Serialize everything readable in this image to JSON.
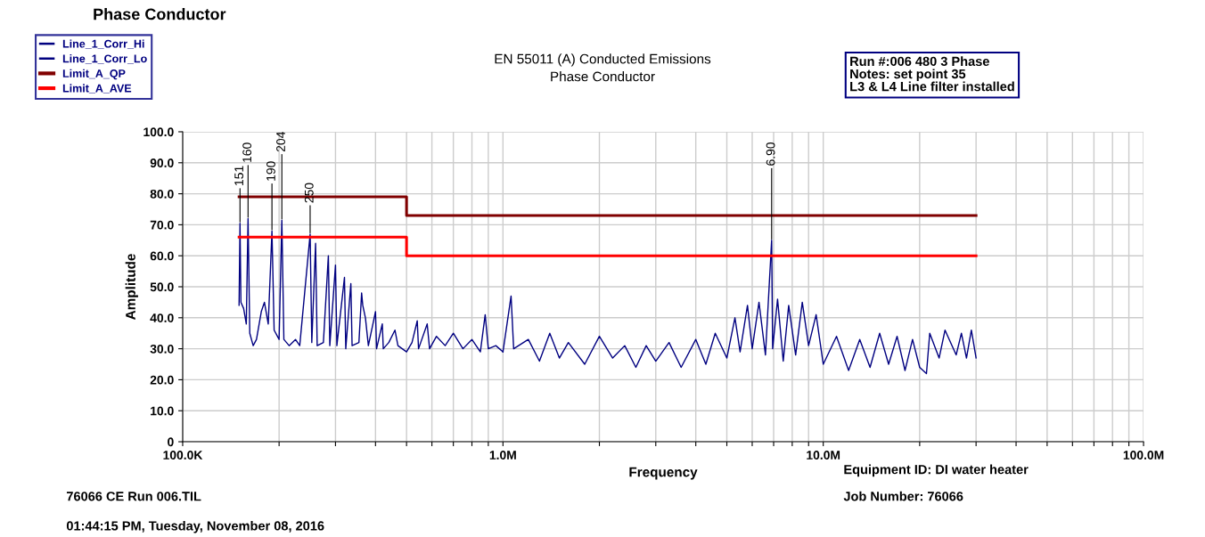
{
  "chart_data": {
    "type": "line",
    "title": "Phase Conductor",
    "subtitle": "EN 55011 (A) Conducted Emissions\nPhase Conductor",
    "xlabel": "Frequency",
    "ylabel": "Amplitude",
    "log": "x",
    "grid": true,
    "legend": "top left",
    "marker": "none",
    "line_style": "solid",
    "xlim": [
      100000,
      100000000
    ],
    "xticks": [
      {
        "value": 100000,
        "label": "100.0K"
      },
      {
        "value": 200000,
        "label": null
      },
      {
        "value": 300000,
        "label": null
      },
      {
        "value": 400000,
        "label": null
      },
      {
        "value": 500000,
        "label": null
      },
      {
        "value": 600000,
        "label": null
      },
      {
        "value": 700000,
        "label": null
      },
      {
        "value": 800000,
        "label": null
      },
      {
        "value": 900000,
        "label": null
      },
      {
        "value": 1000000,
        "label": "1.0M"
      },
      {
        "value": 2000000,
        "label": null
      },
      {
        "value": 3000000,
        "label": null
      },
      {
        "value": 4000000,
        "label": null
      },
      {
        "value": 5000000,
        "label": null
      },
      {
        "value": 6000000,
        "label": null
      },
      {
        "value": 7000000,
        "label": null
      },
      {
        "value": 8000000,
        "label": null
      },
      {
        "value": 9000000,
        "label": null
      },
      {
        "value": 10000000,
        "label": "10.0M"
      },
      {
        "value": 20000000,
        "label": null
      },
      {
        "value": 30000000,
        "label": null
      },
      {
        "value": 40000000,
        "label": null
      },
      {
        "value": 50000000,
        "label": null
      },
      {
        "value": 60000000,
        "label": null
      },
      {
        "value": 70000000,
        "label": null
      },
      {
        "value": 80000000,
        "label": null
      },
      {
        "value": 90000000,
        "label": null
      },
      {
        "value": 100000000,
        "label": "100.0M"
      }
    ],
    "ylim": [
      0,
      100
    ],
    "yticks": [
      0,
      {
        "value": 10,
        "label": "10.0"
      },
      {
        "value": 20,
        "label": "20.0"
      },
      {
        "value": 30,
        "label": "30.0"
      },
      {
        "value": 40,
        "label": "40.0"
      },
      {
        "value": 50,
        "label": "50.0"
      },
      {
        "value": 60,
        "label": "60.0"
      },
      {
        "value": 70,
        "label": "70.0"
      },
      {
        "value": 80,
        "label": "80.0"
      },
      {
        "value": 90,
        "label": "90.0"
      },
      {
        "value": 100,
        "label": "100.0"
      }
    ],
    "series": [
      {
        "name": "Line_1_Corr_Hi",
        "color": "#000080",
        "x": [
          1000000,
          1060000,
          1080000,
          1200000,
          1300000,
          1400000,
          1500000,
          1600000,
          1800000,
          2000000,
          2200000,
          2400000,
          2600000,
          2800000,
          3000000,
          3300000,
          3600000,
          4000000,
          4300000,
          4600000,
          5000000,
          5300000,
          5500000,
          5800000,
          6000000,
          6300000,
          6600000,
          6900000,
          6950000,
          7200000,
          7500000,
          7800000,
          8200000,
          8600000,
          9000000,
          9500000,
          10000000,
          11000000,
          12000000,
          13000000,
          14000000,
          15000000,
          16000000,
          17000000,
          18000000,
          19000000,
          20000000,
          21000000,
          21500000,
          23000000,
          24000000,
          26000000,
          27000000,
          28000000,
          29000000,
          30000000
        ],
        "values": [
          29,
          47,
          30,
          33,
          26,
          35,
          27,
          32,
          25,
          34,
          27,
          31,
          24,
          31,
          26,
          32,
          24,
          33,
          25,
          35,
          27,
          40,
          29,
          44,
          30,
          45,
          28,
          65,
          30,
          46,
          26,
          44,
          28,
          45,
          31,
          41,
          25,
          34,
          23,
          33,
          24,
          35,
          25,
          34,
          23,
          33,
          24,
          22,
          35,
          27,
          36,
          28,
          35,
          27,
          36,
          27
        ]
      },
      {
        "name": "Line_1_Corr_Lo",
        "color": "#000080",
        "x": [
          150000,
          151000,
          152000,
          155000,
          158000,
          160000,
          162000,
          166000,
          170000,
          176000,
          180000,
          185000,
          190000,
          193000,
          200000,
          204000,
          207000,
          215000,
          225000,
          232000,
          250000,
          253000,
          260000,
          263000,
          275000,
          285000,
          288000,
          300000,
          303000,
          320000,
          323000,
          335000,
          338000,
          355000,
          362000,
          365000,
          372000,
          380000,
          400000,
          403000,
          420000,
          423000,
          440000,
          460000,
          470000,
          500000,
          520000,
          540000,
          545000,
          580000,
          590000,
          620000,
          660000,
          700000,
          750000,
          800000,
          850000,
          880000,
          900000,
          950000,
          1000000
        ],
        "values": [
          44,
          70.5,
          45,
          43,
          38,
          72,
          35,
          31,
          33,
          42,
          45,
          38,
          68,
          36,
          33,
          71.5,
          33,
          31,
          33,
          31,
          67,
          32,
          64,
          31,
          32,
          60,
          31,
          57,
          31,
          53,
          30,
          51,
          31,
          32,
          48,
          44,
          40,
          31,
          42,
          30,
          38,
          30,
          32,
          36,
          31,
          29,
          32,
          39,
          30,
          38,
          30,
          34,
          31,
          35,
          30,
          33,
          29,
          41,
          30,
          31,
          29
        ]
      },
      {
        "name": "Limit_A_QP",
        "color": "#800000",
        "type": "step",
        "x": [
          150000,
          500000,
          30000000
        ],
        "values": [
          79,
          73,
          73
        ]
      },
      {
        "name": "Limit_A_AVE",
        "color": "#ff0000",
        "type": "step",
        "x": [
          150000,
          500000,
          30000000
        ],
        "values": [
          66,
          60,
          60
        ]
      }
    ],
    "annotations": [
      {
        "text": "151",
        "x": 151000,
        "y": 70.5
      },
      {
        "text": "160",
        "x": 160000,
        "y": 72
      },
      {
        "text": "190",
        "x": 190000,
        "y": 68
      },
      {
        "text": "204",
        "x": 204000,
        "y": 71.5
      },
      {
        "text": "250",
        "x": 250000,
        "y": 67
      },
      {
        "text": "6.90",
        "x": 6900000,
        "y": 65
      },
      "Run #:006 480 3 Phase\nNotes: set point 35\nL3 & L4 Line filter installed",
      "76066 CE Run 006.TIL",
      "01:44:15 PM, Tuesday, November 08, 2016",
      "Equipment ID: DI water heater",
      "Job Number: 76066"
    ]
  }
}
